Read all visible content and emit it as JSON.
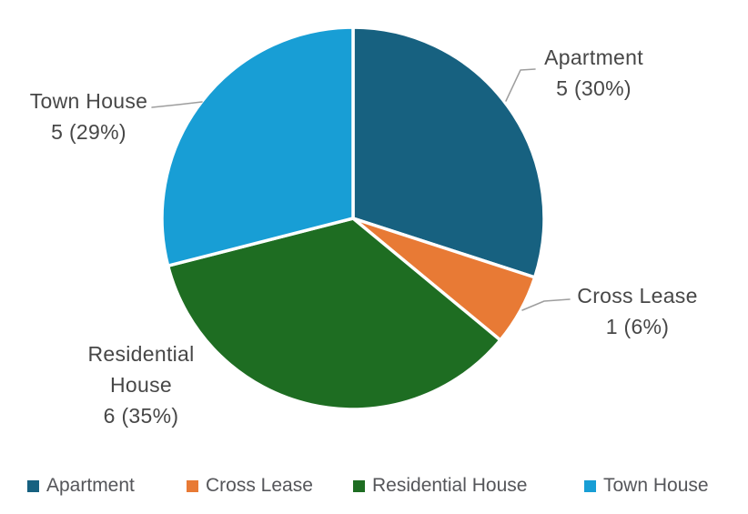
{
  "chart_data": {
    "type": "pie",
    "title": "",
    "categories": [
      "Apartment",
      "Cross Lease",
      "Residential House",
      "Town House"
    ],
    "values": [
      5,
      1,
      6,
      5
    ],
    "percents": [
      30,
      6,
      35,
      29
    ],
    "colors": [
      "#176180",
      "#E87A35",
      "#1E6D22",
      "#189ED5"
    ],
    "slice_border_color": "#ffffff",
    "leader_line_color": "#9e9e9e",
    "legend_position": "bottom",
    "callouts": [
      {
        "label": "Apartment",
        "value_text": "5 (30%)"
      },
      {
        "label": "Cross Lease",
        "value_text": "1 (6%)"
      },
      {
        "label": "Residential House",
        "value_text": "6 (35%)"
      },
      {
        "label": "Town House",
        "value_text": "5 (29%)"
      }
    ]
  },
  "legend": {
    "items": [
      {
        "label": "Apartment",
        "color": "#176180"
      },
      {
        "label": "Cross Lease",
        "color": "#E87A35"
      },
      {
        "label": "Residential House",
        "color": "#1E6D22"
      },
      {
        "label": "Town House",
        "color": "#189ED5"
      }
    ]
  }
}
